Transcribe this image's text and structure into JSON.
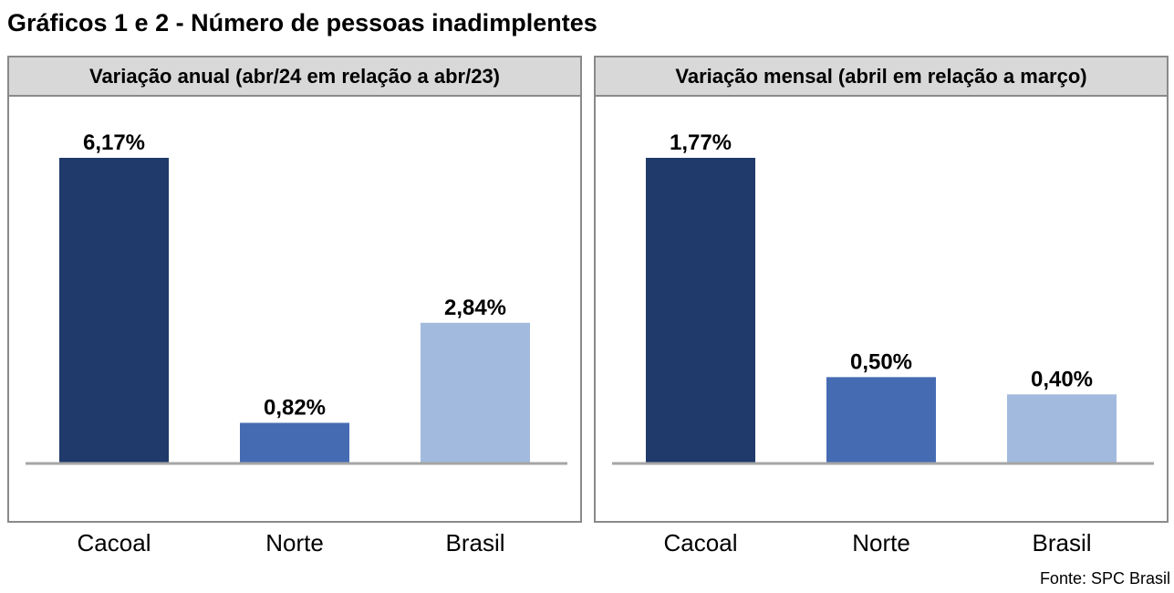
{
  "title": "Gráficos 1 e 2 - Número de pessoas inadimplentes",
  "source": "Fonte: SPC Brasil",
  "colors": {
    "cacoal": "#1f3a6b",
    "norte": "#456cb3",
    "brasil": "#a3badf",
    "header_bg": "#d8d8d8",
    "border": "#8a8a8a",
    "baseline": "#a6a6a6"
  },
  "chart_data": [
    {
      "type": "bar",
      "title": "Variação anual (abr/24 em relação a abr/23)",
      "categories": [
        "Cacoal",
        "Norte",
        "Brasil"
      ],
      "values": [
        6.17,
        0.82,
        2.84
      ],
      "value_labels": [
        "6,17%",
        "0,82%",
        "2,84%"
      ],
      "bar_colors": [
        "#1f3a6b",
        "#456cb3",
        "#a3badf"
      ],
      "ylim": [
        0,
        6.17
      ],
      "grid": false
    },
    {
      "type": "bar",
      "title": "Variação mensal (abril em relação a março)",
      "categories": [
        "Cacoal",
        "Norte",
        "Brasil"
      ],
      "values": [
        1.77,
        0.5,
        0.4
      ],
      "value_labels": [
        "1,77%",
        "0,50%",
        "0,40%"
      ],
      "bar_colors": [
        "#1f3a6b",
        "#456cb3",
        "#a3badf"
      ],
      "ylim": [
        0,
        1.77
      ],
      "grid": false
    }
  ]
}
